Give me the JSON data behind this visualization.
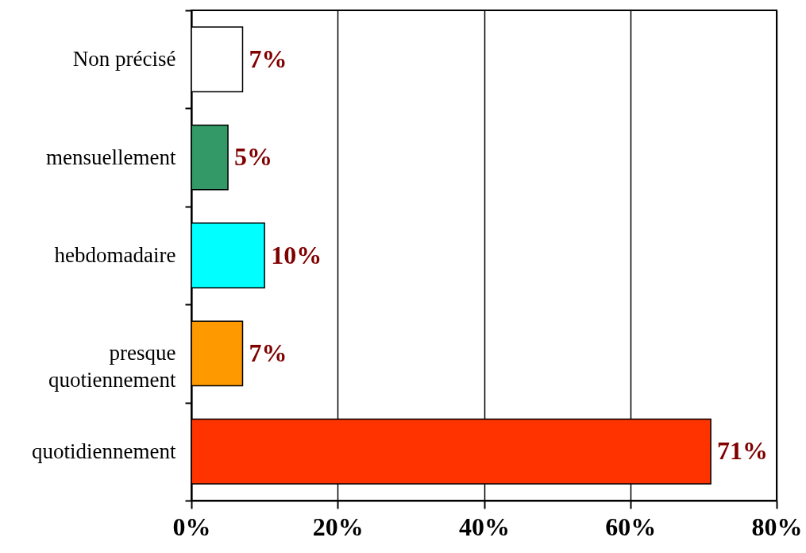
{
  "chart_data": {
    "type": "bar",
    "orientation": "horizontal",
    "categories": [
      "Non précisé",
      "mensuellement",
      "hebdomadaire",
      "presque quotiennement",
      "quotidiennement"
    ],
    "values": [
      7,
      5,
      10,
      7,
      71
    ],
    "colors": [
      "#ffffff",
      "#339966",
      "#00ffff",
      "#ff9900",
      "#ff3300"
    ],
    "value_labels": [
      "7%",
      "5%",
      "10%",
      "7%",
      "71%"
    ],
    "xlim": [
      0,
      80
    ],
    "xticks": [
      {
        "value": 0,
        "label": "0%"
      },
      {
        "value": 20,
        "label": "20%"
      },
      {
        "value": 40,
        "label": "40%"
      },
      {
        "value": 60,
        "label": "60%"
      },
      {
        "value": 80,
        "label": "80%"
      }
    ],
    "grid": "x"
  }
}
